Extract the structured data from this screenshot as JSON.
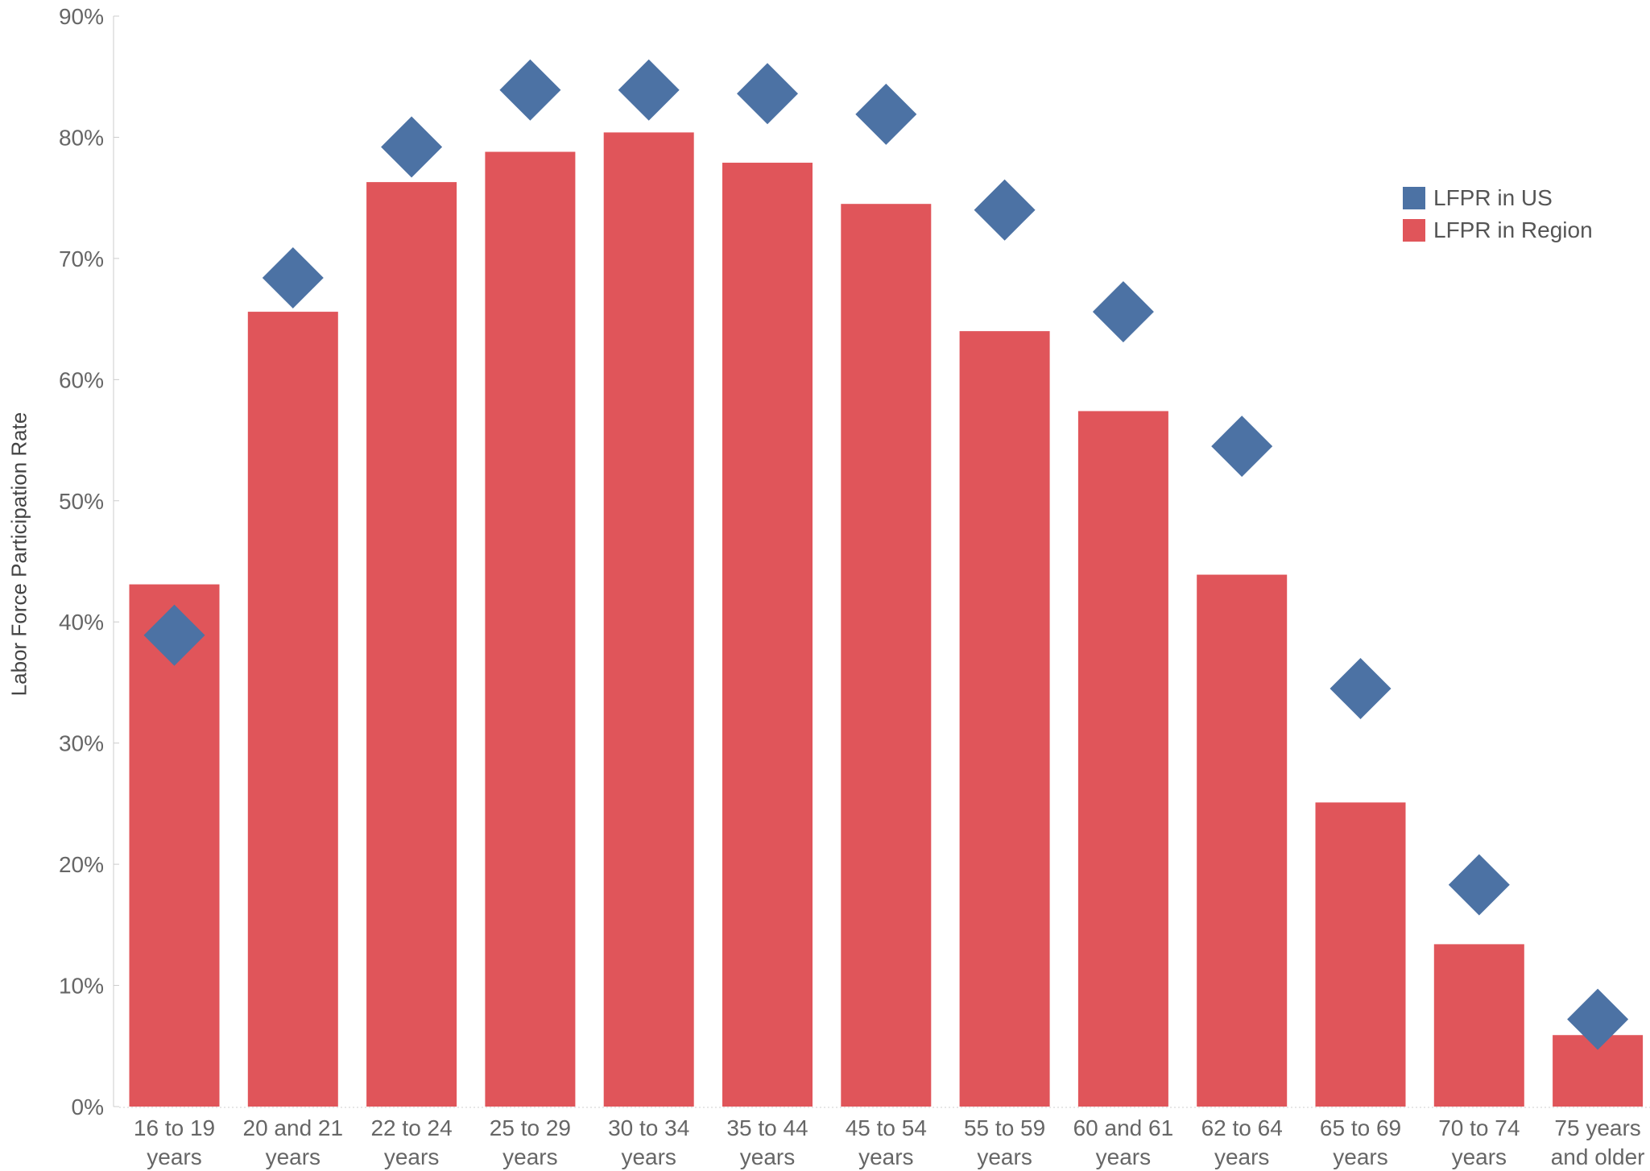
{
  "chart_data": {
    "type": "bar",
    "title": "",
    "xlabel": "",
    "ylabel": "Labor Force Participation Rate",
    "ylim": [
      0,
      90
    ],
    "yticks": [
      "0%",
      "10%",
      "20%",
      "30%",
      "40%",
      "50%",
      "60%",
      "70%",
      "80%",
      "90%"
    ],
    "grid": false,
    "legend_position": "top-right",
    "categories": [
      [
        "16 to 19",
        "years"
      ],
      [
        "20 and 21",
        "years"
      ],
      [
        "22 to 24",
        "years"
      ],
      [
        "25 to 29",
        "years"
      ],
      [
        "30 to 34",
        "years"
      ],
      [
        "35 to 44",
        "years"
      ],
      [
        "45 to 54",
        "years"
      ],
      [
        "55 to 59",
        "years"
      ],
      [
        "60 and 61",
        "years"
      ],
      [
        "62 to 64",
        "years"
      ],
      [
        "65 to 69",
        "years"
      ],
      [
        "70 to 74",
        "years"
      ],
      [
        "75 years",
        "and older"
      ]
    ],
    "series": [
      {
        "name": "LFPR in Region",
        "mark": "bar",
        "color": "#e0555a",
        "values": [
          43.1,
          65.6,
          76.3,
          78.8,
          80.4,
          77.9,
          74.5,
          64.0,
          57.4,
          43.9,
          25.1,
          13.4,
          5.9
        ]
      },
      {
        "name": "LFPR in US",
        "mark": "diamond",
        "color": "#4c72a4",
        "values": [
          38.9,
          68.4,
          79.2,
          83.9,
          83.9,
          83.6,
          81.9,
          74.0,
          65.6,
          54.5,
          34.5,
          18.3,
          7.2
        ]
      }
    ]
  },
  "colors": {
    "axis_text": "#666666",
    "axis_line": "#cccccc",
    "bar": "#e0555a",
    "diamond": "#4c72a4"
  }
}
